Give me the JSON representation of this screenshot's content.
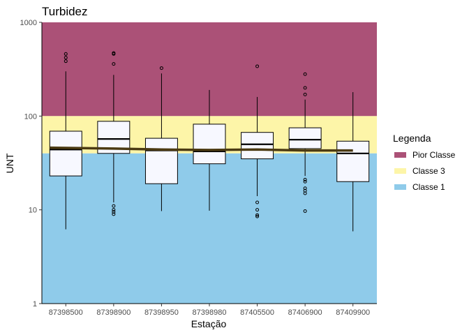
{
  "chart_data": {
    "type": "boxplot",
    "title": "Turbidez",
    "xlabel": "Estação",
    "ylabel": "UNT",
    "yscale": "log10",
    "ylim": [
      1,
      1000
    ],
    "yticks": [
      1,
      10,
      100,
      1000
    ],
    "ytick_labels": [
      "1",
      "10",
      "100",
      "1000"
    ],
    "categories": [
      "87398500",
      "87398900",
      "87398950",
      "87398980",
      "87405500",
      "87406900",
      "87409900"
    ],
    "boxes": [
      {
        "station": "87398500",
        "whisker_low": 6.2,
        "q1": 23,
        "median": 44,
        "q3": 69,
        "whisker_high": 300,
        "outliers": [
          385,
          420,
          460
        ]
      },
      {
        "station": "87398900",
        "whisker_low": 12,
        "q1": 40,
        "median": 57,
        "q3": 88,
        "whisker_high": 275,
        "outliers": [
          9,
          9.5,
          10,
          11,
          360,
          460,
          470
        ]
      },
      {
        "station": "87398950",
        "whisker_low": 9.7,
        "q1": 19,
        "median": 43,
        "q3": 58,
        "whisker_high": 285,
        "outliers": [
          325
        ]
      },
      {
        "station": "87398980",
        "whisker_low": 9.8,
        "q1": 31,
        "median": 42,
        "q3": 82,
        "whisker_high": 190,
        "outliers": []
      },
      {
        "station": "87405500",
        "whisker_low": 14,
        "q1": 35,
        "median": 50,
        "q3": 67,
        "whisker_high": 160,
        "outliers": [
          8.5,
          8.8,
          10,
          12,
          340
        ]
      },
      {
        "station": "87406900",
        "whisker_low": 23,
        "q1": 45,
        "median": 56,
        "q3": 75,
        "whisker_high": 150,
        "outliers": [
          9.7,
          15,
          16,
          17,
          20,
          21,
          170,
          200,
          280
        ]
      },
      {
        "station": "87409900",
        "whisker_low": 5.9,
        "q1": 20,
        "median": 40,
        "q3": 54,
        "whisker_high": 180,
        "outliers": []
      }
    ],
    "trend_line": {
      "values": [
        46,
        45,
        44,
        43.5,
        44,
        43,
        43
      ],
      "color": "#4b3a12"
    },
    "bands": [
      {
        "name": "Pior Classe",
        "from": 100,
        "to": 1000,
        "color": "#ab5177"
      },
      {
        "name": "Classe 3",
        "from": 40,
        "to": 100,
        "color": "#fdf5a8"
      },
      {
        "name": "Classe 1",
        "from": 1,
        "to": 40,
        "color": "#8fcbea"
      }
    ],
    "legend": {
      "title": "Legenda",
      "position": "right",
      "entries": [
        {
          "label": "Pior Classe",
          "color": "#ab5177"
        },
        {
          "label": "Classe 3",
          "color": "#fdf5a8"
        },
        {
          "label": "Classe 1",
          "color": "#8fcbea"
        }
      ]
    },
    "box_fill": "#f7f8ff",
    "grid": false
  }
}
